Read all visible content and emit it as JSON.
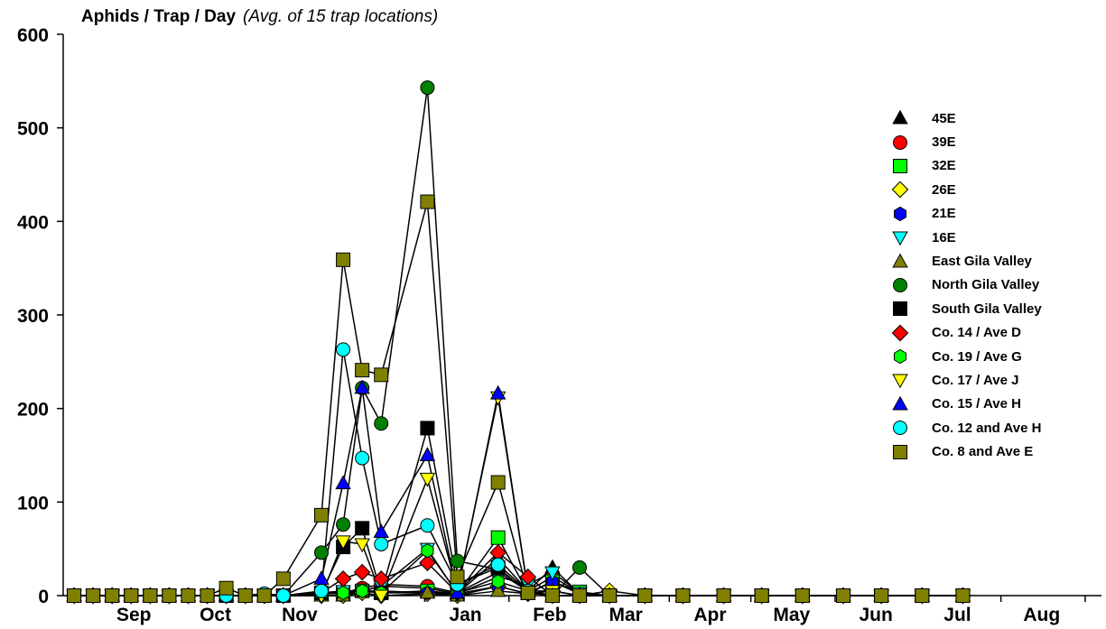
{
  "chart_data": {
    "type": "line",
    "title": "Aphids / Trap / Day",
    "subtitle": "(Avg. of 15 trap locations)",
    "xlabel": "",
    "ylabel": "",
    "ylim": [
      0,
      600
    ],
    "y_ticks": [
      "0",
      "100",
      "200",
      "300",
      "400",
      "500",
      "600"
    ],
    "month_labels": [
      "Sep",
      "Oct",
      "Nov",
      "Dec",
      "Jan",
      "Feb",
      "Mar",
      "Apr",
      "May",
      "Jun",
      "Jul",
      "Aug"
    ],
    "legend_position": "right",
    "grid": false,
    "x_dates": [
      "Aug 25",
      "Sep 1",
      "Sep 8",
      "Sep 15",
      "Sep 22",
      "Sep 29",
      "Oct 6",
      "Oct 13",
      "Oct 20",
      "Oct 27",
      "Nov 3",
      "Nov 10",
      "Nov 24",
      "Dec 2",
      "Dec 9",
      "Dec 16",
      "Jan 2",
      "Jan 13",
      "Jan 28",
      "Feb 8",
      "Feb 17",
      "Feb 27",
      "Mar 10",
      "Mar 23",
      "Apr 6",
      "Apr 21",
      "May 5",
      "May 20",
      "Jun 4",
      "Jun 18",
      "Jul 3",
      "Jul 18"
    ],
    "series": [
      {
        "name": "45E",
        "color": "#000000",
        "marker": "triangle-up",
        "values": [
          0,
          0,
          0,
          0,
          0,
          0,
          0,
          0,
          0,
          0,
          0,
          0,
          2,
          5,
          5,
          10,
          8,
          2,
          40,
          5,
          30,
          2,
          0,
          0,
          0,
          0,
          0,
          0,
          0,
          0,
          0,
          0
        ]
      },
      {
        "name": "39E",
        "color": "#ff0000",
        "marker": "circle",
        "values": [
          0,
          0,
          0,
          0,
          0,
          0,
          0,
          0,
          0,
          0,
          0,
          0,
          3,
          3,
          8,
          12,
          10,
          3,
          25,
          5,
          20,
          3,
          0,
          0,
          0,
          0,
          0,
          0,
          0,
          0,
          0,
          0
        ]
      },
      {
        "name": "32E",
        "color": "#00ff00",
        "marker": "square",
        "values": [
          0,
          0,
          0,
          0,
          0,
          0,
          0,
          0,
          0,
          0,
          0,
          0,
          2,
          2,
          5,
          3,
          5,
          2,
          62,
          3,
          15,
          4,
          0,
          0,
          0,
          0,
          0,
          0,
          0,
          0,
          0,
          0
        ]
      },
      {
        "name": "26E",
        "color": "#ffff00",
        "marker": "diamond",
        "values": [
          0,
          0,
          0,
          0,
          0,
          0,
          0,
          0,
          0,
          0,
          0,
          0,
          0,
          0,
          3,
          0,
          2,
          0,
          10,
          2,
          5,
          0,
          5,
          0,
          0,
          0,
          0,
          0,
          0,
          0,
          0,
          0
        ]
      },
      {
        "name": "21E",
        "color": "#0000ff",
        "marker": "hexagon",
        "values": [
          0,
          0,
          0,
          0,
          0,
          0,
          0,
          0,
          0,
          0,
          0,
          0,
          3,
          3,
          5,
          5,
          3,
          2,
          10,
          2,
          15,
          2,
          0,
          0,
          0,
          0,
          0,
          0,
          0,
          0,
          0,
          0
        ]
      },
      {
        "name": "16E",
        "color": "#00ffff",
        "marker": "triangle-down",
        "values": [
          0,
          0,
          0,
          0,
          0,
          0,
          0,
          0,
          0,
          0,
          0,
          0,
          3,
          5,
          5,
          10,
          50,
          2,
          20,
          12,
          25,
          3,
          0,
          0,
          0,
          0,
          0,
          0,
          0,
          0,
          0,
          0
        ]
      },
      {
        "name": "East Gila Valley",
        "color": "#808000",
        "marker": "triangle-up",
        "values": [
          0,
          0,
          0,
          0,
          0,
          0,
          0,
          0,
          0,
          0,
          0,
          0,
          0,
          0,
          5,
          3,
          3,
          0,
          5,
          2,
          5,
          0,
          0,
          0,
          0,
          0,
          0,
          0,
          0,
          0,
          0,
          0
        ]
      },
      {
        "name": "North Gila Valley",
        "color": "#008000",
        "marker": "circle",
        "values": [
          0,
          0,
          0,
          0,
          0,
          0,
          0,
          0,
          0,
          0,
          2,
          0,
          46,
          76,
          222,
          184,
          543,
          37,
          28,
          5,
          0,
          30,
          0,
          0,
          0,
          0,
          0,
          0,
          0,
          0,
          0,
          0
        ]
      },
      {
        "name": "South Gila Valley",
        "color": "#000000",
        "marker": "square",
        "values": [
          0,
          0,
          0,
          0,
          0,
          0,
          0,
          0,
          0,
          0,
          0,
          0,
          3,
          52,
          72,
          3,
          179,
          12,
          30,
          3,
          0,
          0,
          0,
          0,
          0,
          0,
          0,
          0,
          0,
          0,
          0,
          0
        ]
      },
      {
        "name": "Co. 14 / Ave D",
        "color": "#ff0000",
        "marker": "diamond",
        "values": [
          0,
          0,
          0,
          0,
          0,
          0,
          0,
          0,
          0,
          0,
          0,
          0,
          3,
          18,
          25,
          18,
          35,
          3,
          46,
          20,
          0,
          0,
          0,
          0,
          0,
          0,
          0,
          0,
          0,
          0,
          0,
          0
        ]
      },
      {
        "name": "Co. 19 / Ave G",
        "color": "#00ff00",
        "marker": "hexagon",
        "values": [
          0,
          0,
          0,
          0,
          0,
          0,
          0,
          0,
          0,
          0,
          0,
          0,
          2,
          3,
          5,
          3,
          48,
          3,
          15,
          5,
          0,
          0,
          0,
          0,
          0,
          0,
          0,
          0,
          0,
          0,
          0,
          0
        ]
      },
      {
        "name": "Co. 17 / Ave J",
        "color": "#ffff00",
        "marker": "triangle-down",
        "values": [
          0,
          0,
          0,
          0,
          0,
          0,
          0,
          0,
          0,
          0,
          0,
          0,
          0,
          58,
          55,
          0,
          125,
          5,
          212,
          5,
          5,
          0,
          0,
          0,
          0,
          0,
          0,
          0,
          0,
          0,
          0,
          0
        ]
      },
      {
        "name": "Co. 15 / Ave H",
        "color": "#0000ff",
        "marker": "triangle-up",
        "values": [
          0,
          0,
          0,
          0,
          0,
          0,
          0,
          0,
          0,
          0,
          0,
          0,
          18,
          120,
          222,
          68,
          150,
          3,
          216,
          5,
          0,
          0,
          0,
          0,
          0,
          0,
          0,
          0,
          0,
          0,
          0,
          0
        ]
      },
      {
        "name": "Co. 12 and Ave H",
        "color": "#00ffff",
        "marker": "circle",
        "values": [
          0,
          0,
          0,
          0,
          0,
          0,
          0,
          0,
          0,
          0,
          2,
          0,
          5,
          263,
          147,
          55,
          75,
          12,
          33,
          5,
          0,
          0,
          0,
          0,
          0,
          0,
          0,
          0,
          0,
          0,
          0,
          0
        ]
      },
      {
        "name": "Co. 8 and Ave E",
        "color": "#808000",
        "marker": "square",
        "values": [
          0,
          0,
          0,
          0,
          0,
          0,
          0,
          0,
          8,
          0,
          0,
          18,
          86,
          359,
          241,
          236,
          421,
          20,
          121,
          3,
          0,
          0,
          0,
          0,
          0,
          0,
          0,
          0,
          0,
          0,
          0,
          0
        ]
      }
    ]
  }
}
